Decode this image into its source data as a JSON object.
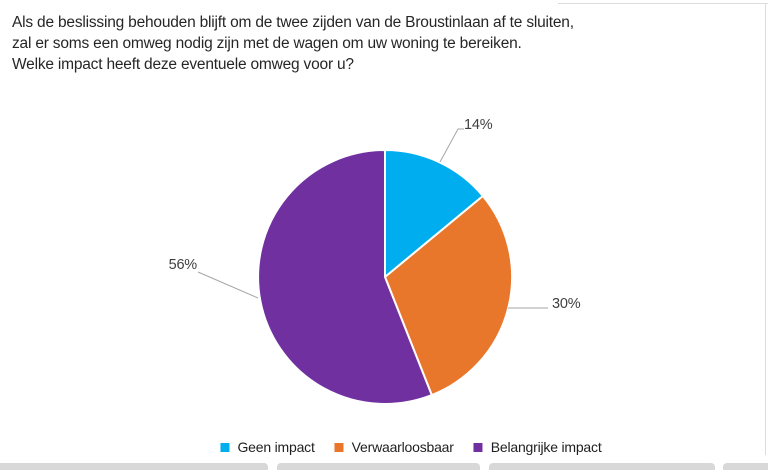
{
  "header": {
    "lines": [
      "Als de beslissing behouden blijft om de twee zijden van de Broustinlaan af te sluiten,",
      "zal er soms een omweg nodig zijn met de wagen om uw woning te bereiken.",
      "Welke impact heeft deze eventuele omweg voor u?"
    ]
  },
  "chart_data": {
    "type": "pie",
    "title": "Als de beslissing behouden blijft om de twee zijden van de Broustinlaan af te sluiten, zal er soms een omweg nodig zijn met de wagen om uw woning te bereiken. Welke impact heeft deze eventuele omweg voor u?",
    "categories": [
      "Geen impact",
      "Verwaarloosbaar",
      "Belangrijke impact"
    ],
    "values": [
      14,
      30,
      56
    ],
    "unit": "percent",
    "slice_labels": [
      "14%",
      "30%",
      "56%"
    ],
    "colors": [
      "#00AEEF",
      "#E8772C",
      "#7030A0"
    ],
    "start_angle_deg": 0,
    "direction": "clockwise",
    "legend_position": "bottom",
    "leader_line_color": "#A6A6A6",
    "slice_border_color": "#FFFFFF"
  }
}
